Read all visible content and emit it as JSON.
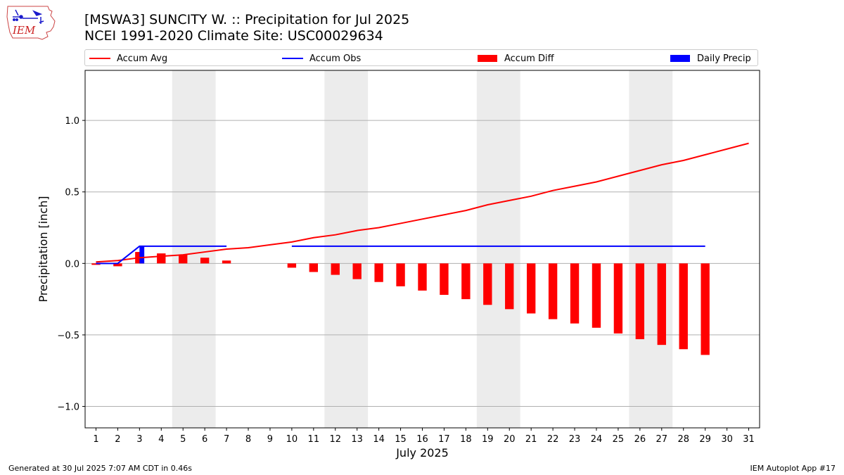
{
  "header": {
    "title_line1": "[MSWA3] SUNCITY W. :: Precipitation for Jul 2025",
    "title_line2": "NCEI 1991-2020 Climate Site: USC00029634",
    "logo_text": "IEM"
  },
  "legend": [
    {
      "label": "Accum Avg",
      "kind": "line",
      "color": "#ff0000"
    },
    {
      "label": "Accum Obs",
      "kind": "line",
      "color": "#0000ff"
    },
    {
      "label": "Accum Diff",
      "kind": "box",
      "color": "#ff0000"
    },
    {
      "label": "Daily Precip",
      "kind": "box",
      "color": "#0000ff"
    }
  ],
  "footer": {
    "left": "Generated at 30 Jul 2025 7:07 AM CDT in 0.46s",
    "right": "IEM Autoplot App #17"
  },
  "chart_data": {
    "type": "bar",
    "xlabel": "July 2025",
    "ylabel": "Precipitation [inch]",
    "xlim": [
      0.5,
      31.5
    ],
    "ylim": [
      -1.15,
      1.35
    ],
    "yticks": [
      -1.0,
      -0.5,
      0.0,
      0.5,
      1.0
    ],
    "ytick_labels": [
      "−1.0",
      "−0.5",
      "0.0",
      "0.5",
      "1.0"
    ],
    "xticks": [
      "1",
      "2",
      "3",
      "4",
      "5",
      "6",
      "7",
      "8",
      "9",
      "10",
      "11",
      "12",
      "13",
      "14",
      "15",
      "16",
      "17",
      "18",
      "19",
      "20",
      "21",
      "22",
      "23",
      "24",
      "25",
      "26",
      "27",
      "28",
      "29",
      "30",
      "31"
    ],
    "grid": "y",
    "weekend_shading": [
      [
        4.5,
        6.5
      ],
      [
        11.5,
        13.5
      ],
      [
        18.5,
        20.5
      ],
      [
        25.5,
        27.5
      ]
    ],
    "colors": {
      "avg": "#ff0000",
      "obs": "#0000ff",
      "diff": "#ff0000",
      "daily": "#0000ff",
      "shade": "#ececec",
      "grid": "#b0b0b0"
    },
    "series": [
      {
        "name": "Accum Avg",
        "kind": "line",
        "x": [
          1,
          2,
          3,
          4,
          5,
          6,
          7,
          8,
          9,
          10,
          11,
          12,
          13,
          14,
          15,
          16,
          17,
          18,
          19,
          20,
          21,
          22,
          23,
          24,
          25,
          26,
          27,
          28,
          29,
          30,
          31
        ],
        "values": [
          0.01,
          0.02,
          0.04,
          0.05,
          0.06,
          0.08,
          0.1,
          0.11,
          0.13,
          0.15,
          0.18,
          0.2,
          0.23,
          0.25,
          0.28,
          0.31,
          0.34,
          0.37,
          0.41,
          0.44,
          0.47,
          0.51,
          0.54,
          0.57,
          0.61,
          0.65,
          0.69,
          0.72,
          0.76,
          0.8,
          0.84
        ]
      },
      {
        "name": "Accum Obs",
        "kind": "line",
        "segments": [
          {
            "x": [
              1,
              2,
              3,
              4,
              5,
              6,
              7
            ],
            "values": [
              0.0,
              0.0,
              0.12,
              0.12,
              0.12,
              0.12,
              0.12
            ]
          },
          {
            "x": [
              10,
              11,
              12,
              13,
              14,
              15,
              16,
              17,
              18,
              19,
              20,
              21,
              22,
              23,
              24,
              25,
              26,
              27,
              28,
              29
            ],
            "values": [
              0.12,
              0.12,
              0.12,
              0.12,
              0.12,
              0.12,
              0.12,
              0.12,
              0.12,
              0.12,
              0.12,
              0.12,
              0.12,
              0.12,
              0.12,
              0.12,
              0.12,
              0.12,
              0.12,
              0.12
            ]
          }
        ]
      },
      {
        "name": "Accum Diff",
        "kind": "bar",
        "x": [
          1,
          2,
          3,
          4,
          5,
          6,
          7,
          10,
          11,
          12,
          13,
          14,
          15,
          16,
          17,
          18,
          19,
          20,
          21,
          22,
          23,
          24,
          25,
          26,
          27,
          28,
          29
        ],
        "values": [
          -0.01,
          -0.02,
          0.08,
          0.07,
          0.06,
          0.04,
          0.02,
          -0.03,
          -0.06,
          -0.08,
          -0.11,
          -0.13,
          -0.16,
          -0.19,
          -0.22,
          -0.25,
          -0.29,
          -0.32,
          -0.35,
          -0.39,
          -0.42,
          -0.45,
          -0.49,
          -0.53,
          -0.57,
          -0.6,
          -0.64
        ]
      },
      {
        "name": "Daily Precip",
        "kind": "bar",
        "x": [
          3
        ],
        "values": [
          0.12
        ]
      }
    ]
  }
}
